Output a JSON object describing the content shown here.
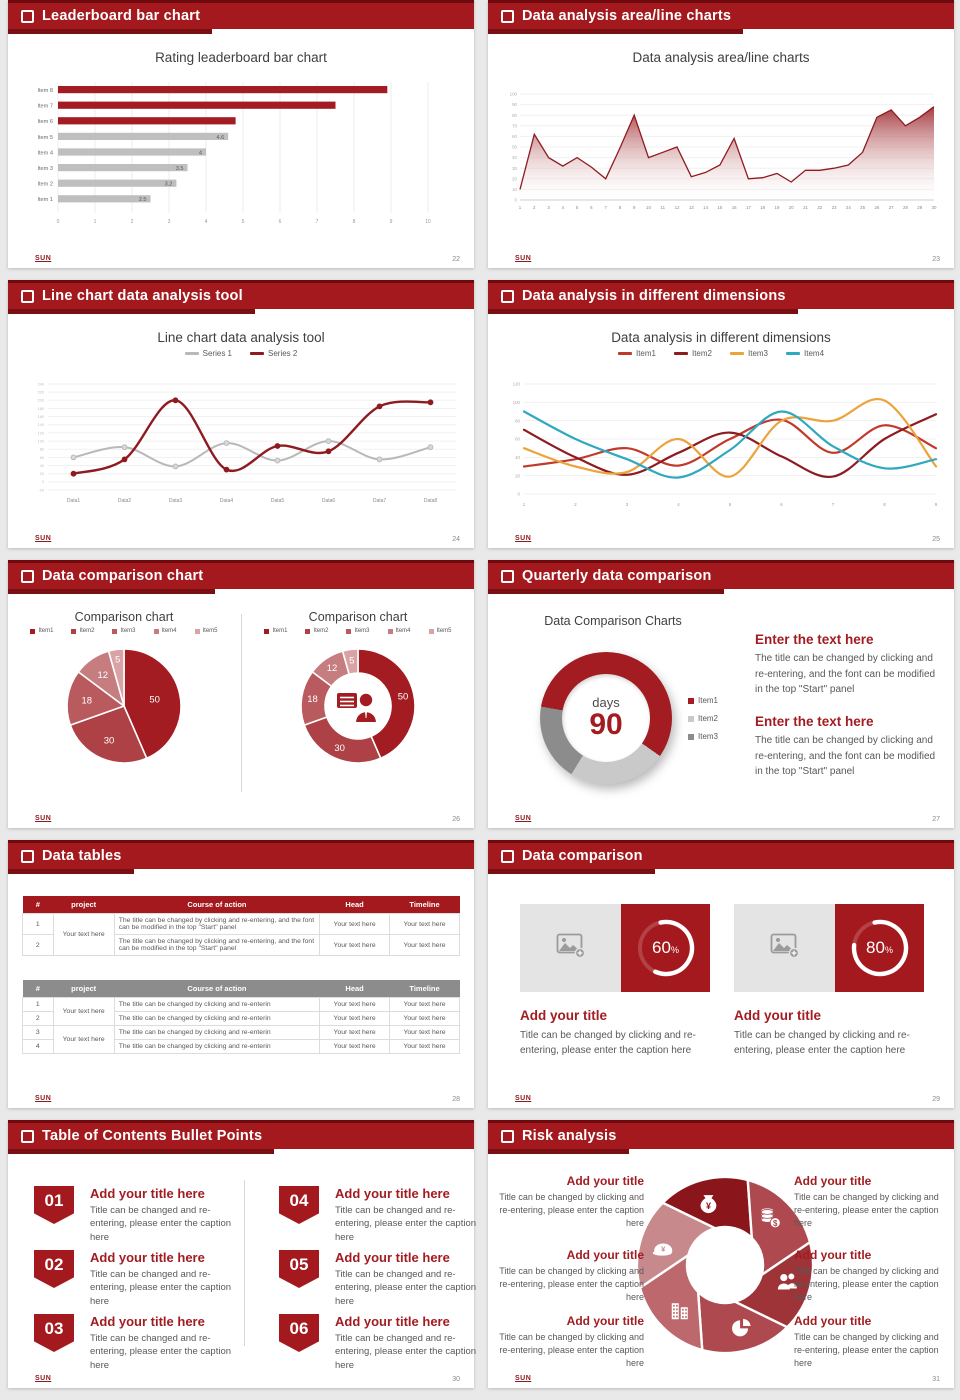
{
  "footer": {
    "logo": "SUN"
  },
  "misc": {
    "percent_sign": "%"
  },
  "colors": {
    "accent": "#A21C21",
    "header_bg": "#A3191E",
    "header_top": "#6E090D",
    "header_shadow": "#7A0F13",
    "bar_gray": "#BFBFBF",
    "text_dark": "#3F3F3F",
    "text_gray": "#595959",
    "grid": "#ECECEC",
    "axis_label": "#9A9A9A",
    "dark_red": "#8E1B20",
    "mid_red": "#C0392B",
    "orange": "#EDA33C",
    "teal": "#2FA9BF",
    "light_gray": "#C9C9C9",
    "gray": "#8C8C8C"
  },
  "slides": [
    {
      "header": "Leaderboard bar chart",
      "page": "22",
      "chart_data": {
        "type": "bar",
        "orientation": "horizontal",
        "title": "Rating leaderboard bar chart",
        "categories": [
          "Item 8",
          "Item 7",
          "Item 6",
          "Item 5",
          "Item 4",
          "Item 3",
          "Item 2",
          "Item 1"
        ],
        "values": [
          8.9,
          7.5,
          4.8,
          4.6,
          4,
          3.5,
          3.2,
          2.5
        ],
        "value_labels": [
          "",
          "",
          "",
          "4.6",
          "4",
          "3.5",
          "3.2",
          "2.5"
        ],
        "bar_colors": [
          "red",
          "red",
          "red",
          "gray",
          "gray",
          "gray",
          "gray",
          "gray"
        ],
        "xlim": [
          0,
          10
        ],
        "xticks": [
          "0",
          "1",
          "2",
          "3",
          "4",
          "5",
          "6",
          "7",
          "8",
          "9",
          "10"
        ]
      }
    },
    {
      "header": "Data analysis area/line charts",
      "page": "23",
      "chart_data": {
        "type": "area",
        "title": "Data analysis area/line charts",
        "xticks": [
          "1",
          "2",
          "3",
          "4",
          "5",
          "6",
          "7",
          "8",
          "9",
          "10",
          "11",
          "12",
          "13",
          "14",
          "15",
          "16",
          "17",
          "18",
          "19",
          "20",
          "21",
          "22",
          "23",
          "24",
          "25",
          "26",
          "27",
          "28",
          "29",
          "30"
        ],
        "values": [
          10,
          62,
          40,
          32,
          40,
          31,
          20,
          49,
          80,
          40,
          45,
          50,
          22,
          26,
          33,
          58,
          20,
          21,
          25,
          17,
          28,
          28,
          30,
          33,
          45,
          78,
          85,
          70,
          78,
          88
        ],
        "ylim": [
          0,
          100
        ],
        "yticks": [
          "100",
          "90",
          "80",
          "70",
          "60",
          "50",
          "40",
          "30",
          "20",
          "10",
          "0"
        ]
      }
    },
    {
      "header": "Line chart data analysis tool",
      "page": "24",
      "chart_data": {
        "type": "line",
        "title": "Line chart data analysis tool",
        "categories": [
          "Data1",
          "Data2",
          "Data3",
          "Data4",
          "Data5",
          "Data6",
          "Data7",
          "Data8"
        ],
        "series": [
          {
            "name": "Series 1",
            "color": "#B9B9B9",
            "marker_fill": "#D9D9D9",
            "values": [
              60,
              85,
              38,
              95,
              52,
              100,
              55,
              85
            ]
          },
          {
            "name": "Series 2",
            "color": "#8E1B20",
            "marker_fill": "#8E1B20",
            "values": [
              20,
              55,
              200,
              30,
              88,
              75,
              185,
              195
            ]
          }
        ],
        "ylim": [
          -20,
          240
        ],
        "yticks": [
          "240",
          "220",
          "200",
          "180",
          "160",
          "140",
          "120",
          "100",
          "80",
          "60",
          "40",
          "20",
          "0",
          "-20"
        ]
      }
    },
    {
      "header": "Data analysis in different dimensions",
      "page": "25",
      "chart_data": {
        "type": "line",
        "title": "Data analysis in different dimensions",
        "xticks": [
          "1",
          "2",
          "3",
          "4",
          "5",
          "6",
          "7",
          "8",
          "9"
        ],
        "series": [
          {
            "name": "Item1",
            "color": "#C0392B",
            "values": [
              30,
              38,
              50,
              31,
              60,
              81,
              45,
              75,
              50
            ]
          },
          {
            "name": "Item2",
            "color": "#8E1B20",
            "values": [
              70,
              40,
              21,
              45,
              67,
              41,
              19,
              60,
              87
            ]
          },
          {
            "name": "Item3",
            "color": "#EDA33C",
            "values": [
              50,
              30,
              24,
              60,
              19,
              80,
              80,
              102,
              30
            ]
          },
          {
            "name": "Item4",
            "color": "#2FA9BF",
            "values": [
              90,
              60,
              38,
              18,
              48,
              90,
              52,
              28,
              38
            ]
          }
        ],
        "ylim": [
          0,
          120
        ],
        "yticks": [
          "120",
          "100",
          "80",
          "60",
          "40",
          "20",
          "0"
        ]
      }
    },
    {
      "header": "Data comparison chart",
      "page": "26",
      "charts": [
        {
          "type": "pie",
          "title": "Comparison chart",
          "labels": [
            "Item1",
            "Item2",
            "Item3",
            "Item4",
            "Item5"
          ],
          "values": [
            50,
            30,
            18,
            12,
            5
          ],
          "colors": [
            "#A21C21",
            "#AE4146",
            "#B85A5E",
            "#C67D80",
            "#D9A2A5"
          ]
        },
        {
          "type": "donut",
          "title": "Comparison chart",
          "labels": [
            "Item1",
            "Item2",
            "Item3",
            "Item4",
            "Item5"
          ],
          "values": [
            50,
            30,
            18,
            12,
            5
          ],
          "colors": [
            "#A21C21",
            "#AE4146",
            "#B85A5E",
            "#C67D80",
            "#D9A2A5"
          ],
          "center_icon": "person-presenting-icon"
        }
      ]
    },
    {
      "header": "Quarterly data comparison",
      "page": "27",
      "chart": {
        "type": "donut",
        "title": "Data Comparison Charts",
        "center_label": "days",
        "center_value": "90",
        "start_angle": -80,
        "series": [
          {
            "name": "Item1",
            "value": 57,
            "color": "#A21C21"
          },
          {
            "name": "Item2",
            "value": 24,
            "color": "#C9C9C9"
          },
          {
            "name": "Item3",
            "value": 19,
            "color": "#8C8C8C"
          }
        ]
      },
      "blocks": [
        {
          "title": "Enter the text here",
          "body": "The title can be changed by clicking and re-entering, and the font can be modified in the top \"Start\" panel"
        },
        {
          "title": "Enter the text here",
          "body": "The title can be changed by clicking and re-entering, and the font can be modified in the top \"Start\" panel"
        }
      ]
    },
    {
      "header": "Data tables",
      "page": "28",
      "tables": [
        {
          "style": "red",
          "columns": [
            "#",
            "project",
            "Course of action",
            "Head",
            "Timeline"
          ],
          "project": "Your text here",
          "rows": [
            {
              "num": "1",
              "course": "The title can be changed by clicking and re-entering, and the font can be modified in the top \"Start\" panel",
              "head": "Your text here",
              "timeline": "Your text here"
            },
            {
              "num": "2",
              "course": "The title can be changed by clicking and re-entering, and the font can be modified in the top \"Start\" panel",
              "head": "Your text here",
              "timeline": "Your text here"
            }
          ]
        },
        {
          "style": "gray",
          "columns": [
            "#",
            "project",
            "Course of action",
            "Head",
            "Timeline"
          ],
          "project": "Your text here",
          "rows": [
            {
              "num": "1",
              "course": "The title can be changed by clicking and re-enterin",
              "head": "Your text here",
              "timeline": "Your text here"
            },
            {
              "num": "2",
              "course": "The title can be changed by clicking and re-enterin",
              "head": "Your text here",
              "timeline": "Your text here"
            },
            {
              "num": "3",
              "course": "The title can be changed by clicking and re-enterin",
              "head": "Your text here",
              "timeline": "Your text here"
            },
            {
              "num": "4",
              "course": "The title can be changed by clicking and re-enterin",
              "head": "Your text here",
              "timeline": "Your text here"
            }
          ]
        }
      ]
    },
    {
      "header": "Data comparison",
      "page": "29",
      "cards": [
        {
          "percent": 60,
          "percent_text": "60",
          "title": "Add your title",
          "caption": "Title can be changed by clicking and re-entering, please enter the caption here"
        },
        {
          "percent": 80,
          "percent_text": "80",
          "title": "Add your title",
          "caption": "Title can be changed by clicking and re-entering, please enter the caption here"
        }
      ]
    },
    {
      "header": "Table of Contents Bullet Points",
      "page": "30",
      "items": [
        {
          "num": "01",
          "title": "Add your title here",
          "caption": "Title can be changed and re-entering, please enter the caption here"
        },
        {
          "num": "02",
          "title": "Add your title here",
          "caption": "Title can be changed and re-entering, please enter the caption here"
        },
        {
          "num": "03",
          "title": "Add your title here",
          "caption": "Title can be changed and re-entering, please enter the caption here"
        },
        {
          "num": "04",
          "title": "Add your title here",
          "caption": "Title can be changed and re-entering, please enter the caption here"
        },
        {
          "num": "05",
          "title": "Add your title here",
          "caption": "Title can be changed and re-entering, please enter the caption here"
        },
        {
          "num": "06",
          "title": "Add your title here",
          "caption": "Title can be changed and re-entering, please enter the caption here"
        }
      ]
    },
    {
      "header": "Risk analysis",
      "page": "31",
      "blocks_left": [
        {
          "title": "Add your title",
          "caption": "Title can be changed by clicking and re-entering, please enter the caption here"
        },
        {
          "title": "Add your title",
          "caption": "Title can be changed by clicking and re-entering, please enter the caption here"
        },
        {
          "title": "Add your title",
          "caption": "Title can be changed by clicking and re-entering, please enter the caption here"
        }
      ],
      "blocks_right": [
        {
          "title": "Add your title",
          "caption": "Title can be changed by clicking and re-entering, please enter the caption here"
        },
        {
          "title": "Add your title",
          "caption": "Title can be changed by clicking and re-entering, please enter the caption here"
        },
        {
          "title": "Add your title",
          "caption": "Title can be changed by clicking and re-entering, please enter the caption here"
        }
      ],
      "wheel": {
        "segments": [
          {
            "icon": "money-bag-icon",
            "color": "#8A161B"
          },
          {
            "icon": "coins-icon",
            "color": "#AE4A4F"
          },
          {
            "icon": "people-icon",
            "color": "#9E3338"
          },
          {
            "icon": "pie-chart-icon",
            "color": "#AE4A4F"
          },
          {
            "icon": "building-icon",
            "color": "#BC686C"
          },
          {
            "icon": "cap-icon",
            "color": "#C8898C"
          }
        ]
      }
    }
  ]
}
